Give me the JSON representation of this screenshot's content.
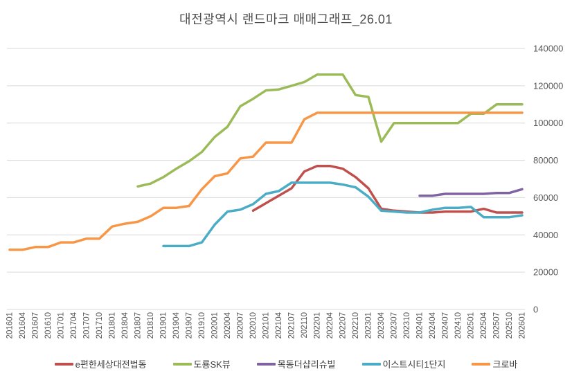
{
  "title": "대전광역시 랜드마크 매매그래프_26.01",
  "chart_data": {
    "type": "line",
    "title": "대전광역시 랜드마크 매매그래프_26.01",
    "xlabel": "",
    "ylabel": "",
    "grid": true,
    "legend_position": "bottom",
    "y_axis": {
      "min": 0,
      "max": 140000,
      "step": 20000,
      "position": "right",
      "ticks": [
        "0",
        "20000",
        "40000",
        "60000",
        "80000",
        "100000",
        "120000",
        "140000"
      ]
    },
    "x_labels": [
      "201601",
      "201604",
      "201607",
      "201610",
      "201701",
      "201704",
      "201707",
      "201710",
      "201801",
      "201804",
      "201807",
      "201810",
      "201901",
      "201904",
      "201907",
      "201910",
      "202001",
      "202004",
      "202007",
      "202010",
      "202101",
      "202104",
      "202107",
      "202110",
      "202201",
      "202204",
      "202207",
      "202210",
      "202301",
      "202304",
      "202307",
      "202310",
      "202401",
      "202404",
      "202407",
      "202410",
      "202501",
      "202504",
      "202507",
      "202510",
      "202601"
    ],
    "series": [
      {
        "name": "e편한세상대전법동",
        "color": "#C0504D",
        "values": [
          null,
          null,
          null,
          null,
          null,
          null,
          null,
          null,
          null,
          null,
          null,
          null,
          null,
          null,
          null,
          null,
          null,
          null,
          null,
          53000,
          57000,
          61000,
          65000,
          74000,
          77000,
          77000,
          75500,
          71000,
          65000,
          54000,
          53000,
          52500,
          52000,
          52000,
          52500,
          52500,
          52500,
          54000,
          52000,
          52000,
          52000
        ]
      },
      {
        "name": "도룡SK뷰",
        "color": "#9BBB59",
        "values": [
          null,
          null,
          null,
          null,
          null,
          null,
          null,
          null,
          null,
          null,
          66000,
          67500,
          71000,
          75500,
          79500,
          84500,
          92500,
          98000,
          109000,
          113000,
          117500,
          118000,
          120000,
          122000,
          126000,
          126000,
          126000,
          115000,
          114000,
          90000,
          100000,
          100000,
          100000,
          100000,
          100000,
          100000,
          105000,
          105000,
          110000,
          110000,
          110000
        ]
      },
      {
        "name": "목동더샵리슈빌",
        "color": "#8064A2",
        "values": [
          null,
          null,
          null,
          null,
          null,
          null,
          null,
          null,
          null,
          null,
          null,
          null,
          null,
          null,
          null,
          null,
          null,
          null,
          null,
          null,
          null,
          null,
          null,
          null,
          null,
          null,
          null,
          null,
          null,
          null,
          null,
          null,
          61000,
          61000,
          62000,
          62000,
          62000,
          62000,
          62500,
          62500,
          64500
        ]
      },
      {
        "name": "이스트시티1단지",
        "color": "#4BACC6",
        "values": [
          null,
          null,
          null,
          null,
          null,
          null,
          null,
          null,
          null,
          null,
          null,
          null,
          34000,
          34000,
          34000,
          36000,
          45500,
          52500,
          53500,
          56500,
          62000,
          63500,
          68000,
          68000,
          68000,
          68000,
          67000,
          65500,
          60500,
          53000,
          52500,
          52000,
          52000,
          53500,
          54500,
          54500,
          55000,
          49500,
          49500,
          49500,
          50500
        ]
      },
      {
        "name": "크로바",
        "color": "#F79646",
        "values": [
          32000,
          32000,
          33500,
          33500,
          36000,
          36000,
          38000,
          38000,
          44500,
          46000,
          47000,
          50000,
          54500,
          54500,
          55500,
          64500,
          71500,
          73000,
          81000,
          82000,
          89500,
          89500,
          89500,
          102000,
          105500,
          105500,
          105500,
          105500,
          105500,
          105500,
          105500,
          105500,
          105500,
          105500,
          105500,
          105500,
          105500,
          105500,
          105500,
          105500,
          105500
        ]
      }
    ],
    "style": {
      "gridline_color": "#D9D9D9",
      "tick_color": "#595959",
      "title_color": "#4d4d4d",
      "line_width": 3.5
    }
  }
}
